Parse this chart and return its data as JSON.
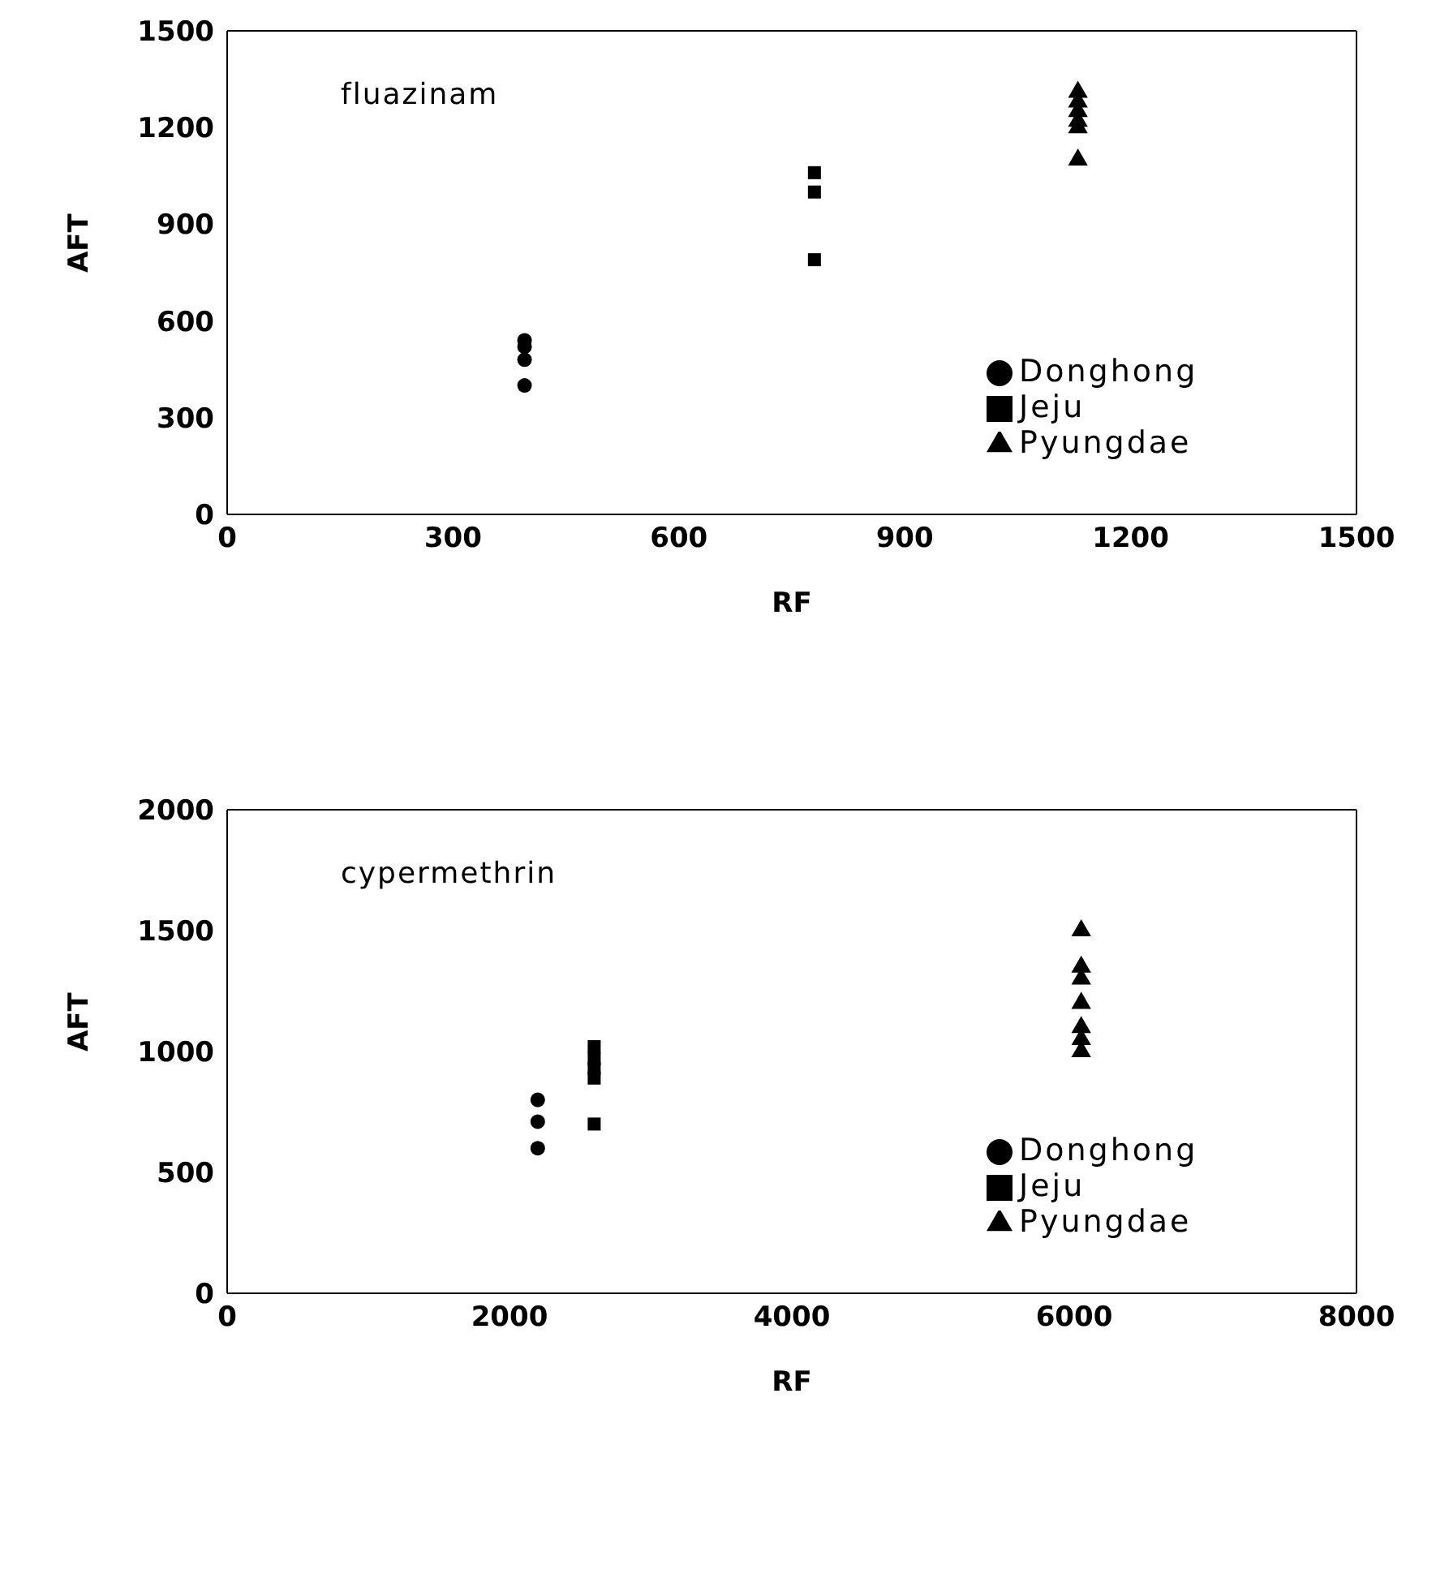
{
  "chart_data": [
    {
      "type": "scatter",
      "title": "fluazinam",
      "xlabel": "RF",
      "ylabel": "AFT",
      "xlim": [
        0,
        1500
      ],
      "xticks": [
        0,
        300,
        600,
        900,
        1200,
        1500
      ],
      "ylim": [
        0,
        1500
      ],
      "yticks": [
        0,
        300,
        600,
        900,
        1200,
        1500
      ],
      "grid": false,
      "legend": "right",
      "series": [
        {
          "name": "Donghong",
          "color": "#000000",
          "marker": "circle",
          "x": [
            395,
            395,
            395,
            395
          ],
          "values": [
            540,
            520,
            480,
            400
          ]
        },
        {
          "name": "Jeju",
          "color": "#000000",
          "marker": "square",
          "x": [
            780,
            780,
            780
          ],
          "values": [
            1060,
            1000,
            790
          ]
        },
        {
          "name": "Pyungdae",
          "color": "#000000",
          "marker": "triangle",
          "x": [
            1130,
            1130,
            1130,
            1130,
            1130,
            1130
          ],
          "values": [
            1310,
            1280,
            1250,
            1220,
            1200,
            1100
          ]
        }
      ]
    },
    {
      "type": "scatter",
      "title": "cypermethrin",
      "xlabel": "RF",
      "ylabel": "AFT",
      "xlim": [
        0,
        8000
      ],
      "xticks": [
        0,
        2000,
        4000,
        6000,
        8000
      ],
      "ylim": [
        0,
        2000
      ],
      "yticks": [
        0,
        500,
        1000,
        1500,
        2000
      ],
      "grid": false,
      "legend": "right",
      "series": [
        {
          "name": "Donghong",
          "color": "#000000",
          "marker": "circle",
          "x": [
            2200,
            2200,
            2200
          ],
          "values": [
            800,
            710,
            600
          ]
        },
        {
          "name": "Jeju",
          "color": "#000000",
          "marker": "square",
          "x": [
            2600,
            2600,
            2600,
            2600,
            2600
          ],
          "values": [
            1020,
            970,
            930,
            890,
            700
          ]
        },
        {
          "name": "Pyungdae",
          "color": "#000000",
          "marker": "triangle",
          "x": [
            6050,
            6050,
            6050,
            6050,
            6050,
            6050,
            6050
          ],
          "values": [
            1500,
            1350,
            1300,
            1200,
            1100,
            1050,
            1000
          ]
        }
      ]
    }
  ]
}
